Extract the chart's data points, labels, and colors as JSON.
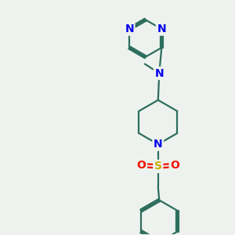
{
  "bg_color": "#eef2ee",
  "bond_color": "#2d6e5e",
  "N_color": "#0000ee",
  "S_color": "#ccaa00",
  "O_color": "#ee1100",
  "bond_width": 1.6,
  "figsize": [
    3.0,
    3.0
  ],
  "dpi": 100,
  "xlim": [
    0,
    10
  ],
  "ylim": [
    0,
    10
  ]
}
